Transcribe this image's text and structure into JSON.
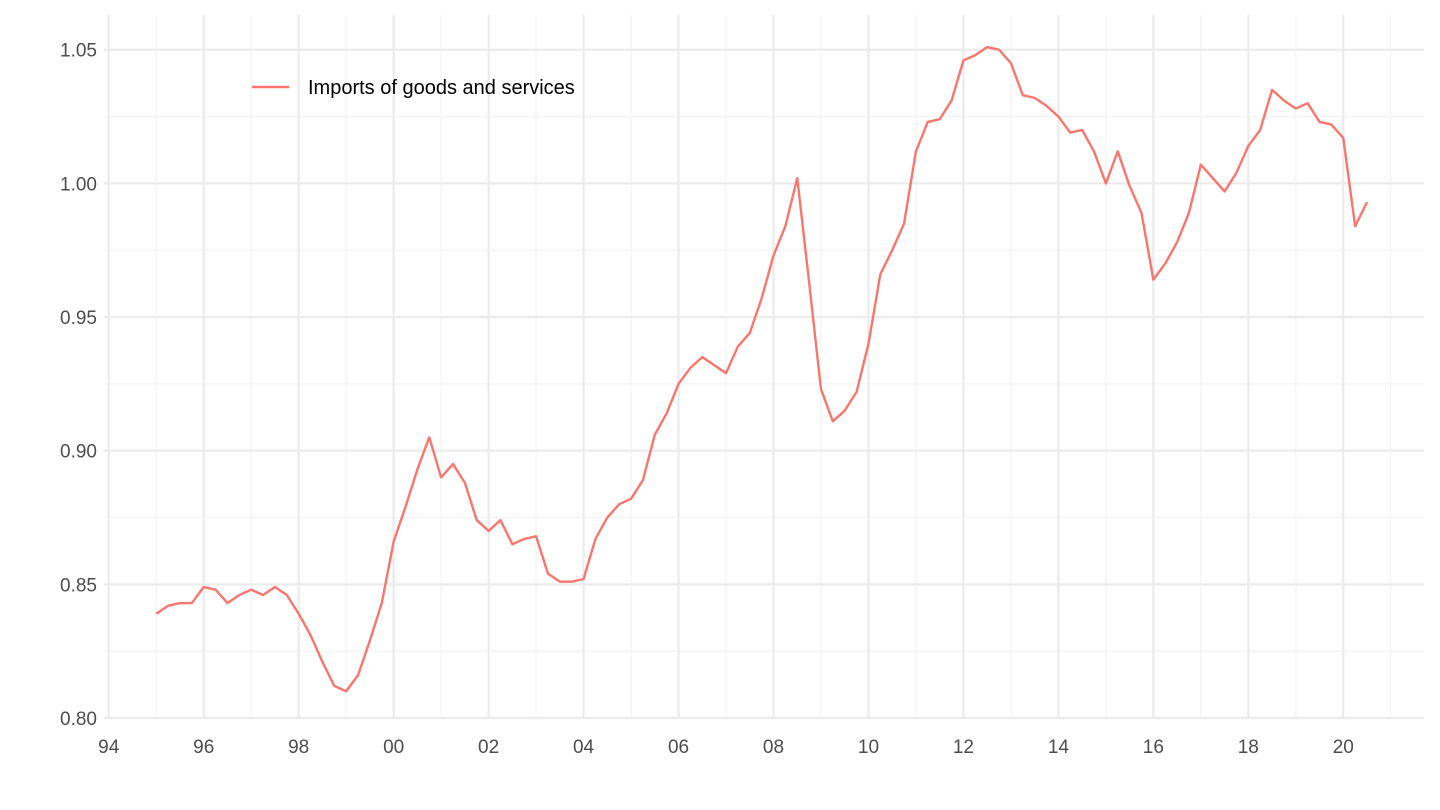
{
  "chart_data": {
    "type": "line",
    "title": "",
    "xlabel": "",
    "ylabel": "",
    "xlim": [
      1993.9,
      2021.7
    ],
    "ylim": [
      0.8,
      1.063
    ],
    "x_ticks": [
      {
        "value": 1994,
        "label": "94"
      },
      {
        "value": 1996,
        "label": "96"
      },
      {
        "value": 1998,
        "label": "98"
      },
      {
        "value": 2000,
        "label": "00"
      },
      {
        "value": 2002,
        "label": "02"
      },
      {
        "value": 2004,
        "label": "04"
      },
      {
        "value": 2006,
        "label": "06"
      },
      {
        "value": 2008,
        "label": "08"
      },
      {
        "value": 2010,
        "label": "10"
      },
      {
        "value": 2012,
        "label": "12"
      },
      {
        "value": 2014,
        "label": "14"
      },
      {
        "value": 2016,
        "label": "16"
      },
      {
        "value": 2018,
        "label": "18"
      },
      {
        "value": 2020,
        "label": "20"
      }
    ],
    "x_minor_ticks": [
      1995,
      1997,
      1999,
      2001,
      2003,
      2005,
      2007,
      2009,
      2011,
      2013,
      2015,
      2017,
      2019,
      2021
    ],
    "y_ticks": [
      {
        "value": 0.8,
        "label": "0.80"
      },
      {
        "value": 0.85,
        "label": "0.85"
      },
      {
        "value": 0.9,
        "label": "0.90"
      },
      {
        "value": 0.95,
        "label": "0.95"
      },
      {
        "value": 1.0,
        "label": "1.00"
      },
      {
        "value": 1.05,
        "label": "1.05"
      }
    ],
    "y_minor_ticks": [
      0.825,
      0.875,
      0.925,
      0.975,
      1.025
    ],
    "grid": true,
    "legend_position": "top-left",
    "series": [
      {
        "name": "Imports of goods and services",
        "color": "#F8766D",
        "points": [
          [
            1995.0,
            0.839
          ],
          [
            1995.25,
            0.842
          ],
          [
            1995.5,
            0.843
          ],
          [
            1995.75,
            0.843
          ],
          [
            1996.0,
            0.849
          ],
          [
            1996.25,
            0.848
          ],
          [
            1996.5,
            0.843
          ],
          [
            1996.75,
            0.846
          ],
          [
            1997.0,
            0.848
          ],
          [
            1997.25,
            0.846
          ],
          [
            1997.5,
            0.849
          ],
          [
            1997.75,
            0.846
          ],
          [
            1998.0,
            0.839
          ],
          [
            1998.25,
            0.831
          ],
          [
            1998.5,
            0.821
          ],
          [
            1998.75,
            0.812
          ],
          [
            1999.0,
            0.81
          ],
          [
            1999.25,
            0.816
          ],
          [
            1999.5,
            0.829
          ],
          [
            1999.75,
            0.843
          ],
          [
            2000.0,
            0.866
          ],
          [
            2000.25,
            0.879
          ],
          [
            2000.5,
            0.893
          ],
          [
            2000.75,
            0.905
          ],
          [
            2001.0,
            0.89
          ],
          [
            2001.25,
            0.895
          ],
          [
            2001.5,
            0.888
          ],
          [
            2001.75,
            0.874
          ],
          [
            2002.0,
            0.87
          ],
          [
            2002.25,
            0.874
          ],
          [
            2002.5,
            0.865
          ],
          [
            2002.75,
            0.867
          ],
          [
            2003.0,
            0.868
          ],
          [
            2003.25,
            0.854
          ],
          [
            2003.5,
            0.851
          ],
          [
            2003.75,
            0.851
          ],
          [
            2004.0,
            0.852
          ],
          [
            2004.25,
            0.867
          ],
          [
            2004.5,
            0.875
          ],
          [
            2004.75,
            0.88
          ],
          [
            2005.0,
            0.882
          ],
          [
            2005.25,
            0.889
          ],
          [
            2005.5,
            0.906
          ],
          [
            2005.75,
            0.914
          ],
          [
            2006.0,
            0.925
          ],
          [
            2006.25,
            0.931
          ],
          [
            2006.5,
            0.935
          ],
          [
            2006.75,
            0.932
          ],
          [
            2007.0,
            0.929
          ],
          [
            2007.25,
            0.939
          ],
          [
            2007.5,
            0.944
          ],
          [
            2007.75,
            0.957
          ],
          [
            2008.0,
            0.973
          ],
          [
            2008.25,
            0.984
          ],
          [
            2008.5,
            1.002
          ],
          [
            2008.75,
            0.963
          ],
          [
            2009.0,
            0.923
          ],
          [
            2009.25,
            0.911
          ],
          [
            2009.5,
            0.915
          ],
          [
            2009.75,
            0.922
          ],
          [
            2010.0,
            0.94
          ],
          [
            2010.25,
            0.966
          ],
          [
            2010.5,
            0.975
          ],
          [
            2010.75,
            0.985
          ],
          [
            2011.0,
            1.012
          ],
          [
            2011.25,
            1.023
          ],
          [
            2011.5,
            1.024
          ],
          [
            2011.75,
            1.031
          ],
          [
            2012.0,
            1.046
          ],
          [
            2012.25,
            1.048
          ],
          [
            2012.5,
            1.051
          ],
          [
            2012.75,
            1.05
          ],
          [
            2013.0,
            1.045
          ],
          [
            2013.25,
            1.033
          ],
          [
            2013.5,
            1.032
          ],
          [
            2013.75,
            1.029
          ],
          [
            2014.0,
            1.025
          ],
          [
            2014.25,
            1.019
          ],
          [
            2014.5,
            1.02
          ],
          [
            2014.75,
            1.012
          ],
          [
            2015.0,
            1.0
          ],
          [
            2015.25,
            1.012
          ],
          [
            2015.5,
            0.999
          ],
          [
            2015.75,
            0.989
          ],
          [
            2016.0,
            0.964
          ],
          [
            2016.25,
            0.97
          ],
          [
            2016.5,
            0.978
          ],
          [
            2016.75,
            0.989
          ],
          [
            2017.0,
            1.007
          ],
          [
            2017.25,
            1.002
          ],
          [
            2017.5,
            0.997
          ],
          [
            2017.75,
            1.004
          ],
          [
            2018.0,
            1.014
          ],
          [
            2018.25,
            1.02
          ],
          [
            2018.5,
            1.035
          ],
          [
            2018.75,
            1.031
          ],
          [
            2019.0,
            1.028
          ],
          [
            2019.25,
            1.03
          ],
          [
            2019.5,
            1.023
          ],
          [
            2019.75,
            1.022
          ],
          [
            2020.0,
            1.017
          ],
          [
            2020.25,
            0.984
          ],
          [
            2020.5,
            0.993
          ]
        ]
      }
    ]
  }
}
